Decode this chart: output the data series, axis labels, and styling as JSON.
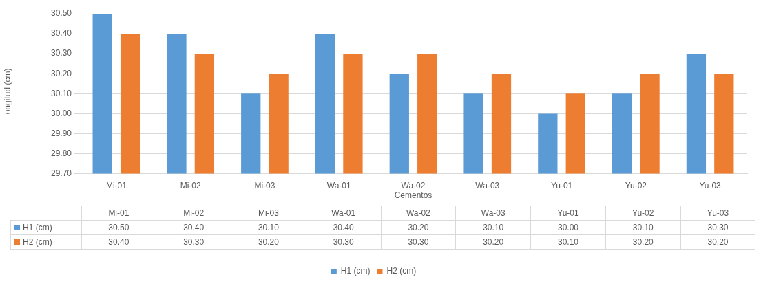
{
  "chart_data": {
    "type": "bar",
    "xlabel": "Cementos",
    "ylabel": "Longitud (cm)",
    "categories": [
      "Mi-01",
      "Mi-02",
      "Mi-03",
      "Wa-01",
      "Wa-02",
      "Wa-03",
      "Yu-01",
      "Yu-02",
      "Yu-03"
    ],
    "series": [
      {
        "name": "H1 (cm)",
        "color": "#5b9bd5",
        "values": [
          30.5,
          30.4,
          30.1,
          30.4,
          30.2,
          30.1,
          30.0,
          30.1,
          30.3
        ],
        "value_labels": [
          "30.50",
          "30.40",
          "30.10",
          "30.40",
          "30.20",
          "30.10",
          "30.00",
          "30.10",
          "30.30"
        ]
      },
      {
        "name": "H2 (cm)",
        "color": "#ed7d31",
        "values": [
          30.4,
          30.3,
          30.2,
          30.3,
          30.3,
          30.2,
          30.1,
          30.2,
          30.2
        ],
        "value_labels": [
          "30.40",
          "30.30",
          "30.20",
          "30.30",
          "30.30",
          "30.20",
          "30.10",
          "30.20",
          "30.20"
        ]
      }
    ],
    "ylim": [
      29.7,
      30.5
    ],
    "yticks": [
      {
        "value": 29.7,
        "label": "29.70"
      },
      {
        "value": 29.8,
        "label": "29.80"
      },
      {
        "value": 29.9,
        "label": "29.90"
      },
      {
        "value": 30.0,
        "label": "30.00"
      },
      {
        "value": 30.1,
        "label": "30.10"
      },
      {
        "value": 30.2,
        "label": "30.20"
      },
      {
        "value": 30.3,
        "label": "30.30"
      },
      {
        "value": 30.4,
        "label": "30.40"
      },
      {
        "value": 30.5,
        "label": "30.50"
      }
    ],
    "grid": "y",
    "legend": "bottom"
  }
}
